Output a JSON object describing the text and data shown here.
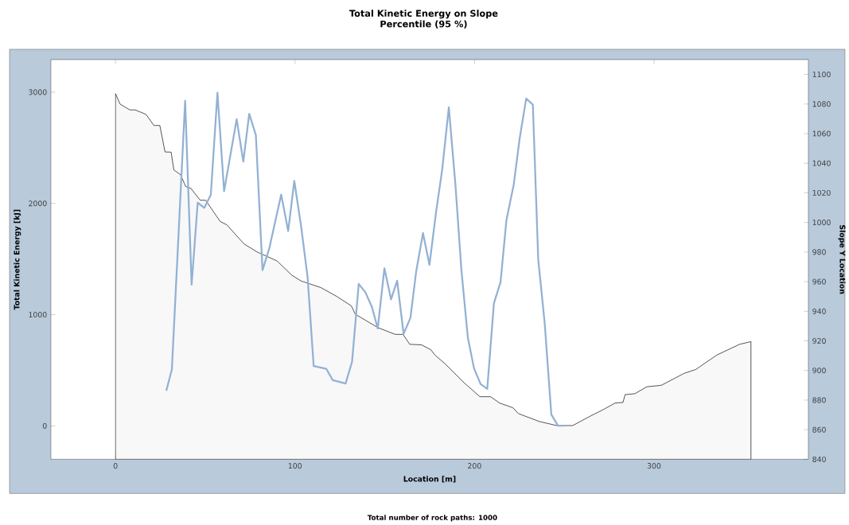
{
  "chart_data": {
    "type": "line",
    "title": "Total Kinetic Energy on Slope",
    "subtitle": "Percentile (95 %)",
    "xlabel": "Location [m]",
    "ylabel": "Total Kinetic Energy [kJ]",
    "y2label": "Slope Y Location",
    "annotations": [
      "Total number of rock paths:  1000"
    ],
    "xlim": [
      -36,
      386
    ],
    "xticks": [
      0,
      100,
      200,
      300
    ],
    "ylim": [
      -300,
      3293
    ],
    "yticks": [
      0,
      1000,
      2000,
      3000
    ],
    "y2lim": [
      840,
      1110
    ],
    "y2ticks": [
      840,
      860,
      880,
      900,
      920,
      940,
      960,
      980,
      1000,
      1020,
      1040,
      1060,
      1080,
      1100
    ],
    "grid": false,
    "series": [
      {
        "type": "area",
        "axis": "y2",
        "color": "#f8f8f8",
        "x": [
          0,
          2.5,
          8,
          11,
          17,
          21.4,
          24.7,
          27.6,
          31,
          32.5,
          36.2,
          39.1,
          42,
          47.2,
          50.2,
          58.3,
          62,
          71.6,
          79,
          90,
          98.2,
          103.3,
          114.4,
          123.3,
          131.4,
          133.6,
          146.1,
          155.8,
          160.2,
          163.9,
          170.5,
          175.7,
          177.9,
          183.8,
          194.1,
          203,
          208.9,
          214,
          221.4,
          224.4,
          236.2,
          245.8,
          254.7,
          265,
          272.4,
          278.3,
          282.7,
          283.9,
          289.3,
          296,
          304.1,
          316.7,
          323.3,
          335.1,
          347.7,
          354
        ],
        "values": [
          1087,
          1080,
          1076,
          1076,
          1073,
          1065.5,
          1065.5,
          1047.6,
          1047.5,
          1035.5,
          1032.3,
          1024.3,
          1023,
          1015,
          1015,
          1000.7,
          998.4,
          985.5,
          980,
          974,
          964.4,
          960.5,
          956,
          950,
          943.6,
          938,
          929,
          924.4,
          924.4,
          917.7,
          917.3,
          914,
          910.5,
          904.3,
          891.8,
          882.3,
          882.3,
          878,
          874.8,
          870.9,
          865.5,
          862.8,
          862.8,
          869.5,
          874,
          878,
          878.4,
          883.7,
          884.3,
          889,
          890,
          898,
          900.7,
          910.5,
          917.7,
          919.5
        ]
      },
      {
        "color": "#93b1d4",
        "x": [
          28.3,
          31.4,
          38.8,
          42.4,
          45.8,
          49.5,
          53.1,
          56.8,
          60.5,
          67.5,
          71.2,
          74.5,
          78.2,
          81.9,
          85.6,
          92.3,
          96.2,
          99.6,
          103.3,
          107,
          110.4,
          117.4,
          121,
          128.2,
          131.8,
          135.5,
          139.2,
          142.9,
          146.1,
          149.8,
          153.5,
          156.9,
          160.5,
          164.3,
          167.5,
          171.3,
          174.9,
          178.6,
          182,
          185.7,
          189.4,
          192.7,
          196.3,
          199.7,
          203.4,
          207.1,
          210.8,
          214.5,
          217.8,
          221.9,
          225.1,
          228.8,
          232.5,
          235.5,
          239.1,
          242.8,
          246.5,
          250.2
        ],
        "values": [
          316,
          507,
          2924,
          1269,
          2007,
          1960,
          2079,
          2995,
          2110,
          2757,
          2376,
          2805,
          2614,
          1400,
          1591,
          2079,
          1752,
          2202,
          1805,
          1341,
          538,
          514,
          412,
          381,
          579,
          1276,
          1202,
          1067,
          876,
          1417,
          1138,
          1305,
          829,
          971,
          1388,
          1734,
          1448,
          1924,
          2305,
          2864,
          2162,
          1400,
          793,
          519,
          376,
          333,
          1102,
          1293,
          1852,
          2174,
          2579,
          2943,
          2888,
          1495,
          924,
          102,
          2,
          2
        ]
      }
    ]
  }
}
